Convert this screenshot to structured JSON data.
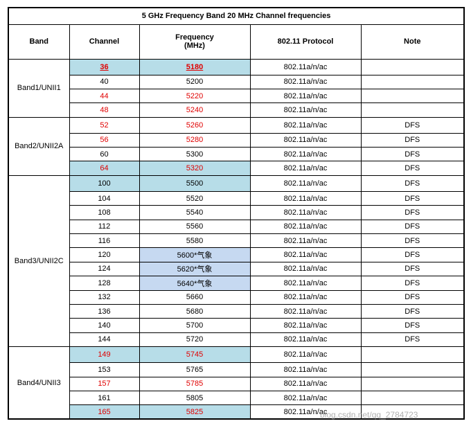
{
  "table": {
    "title": "5 GHz Frequency Band 20 MHz Channel frequencies",
    "headers": [
      "Band",
      "Channel",
      "Frequency\n(MHz)",
      "802.11 Protocol",
      "Note"
    ],
    "groups": [
      {
        "band": "Band1/UNII1",
        "rows": [
          {
            "channel": "36",
            "frequency": "5180",
            "protocol": "802.11a/n/ac",
            "color": "#e00000",
            "fill": "#b7dde8",
            "underline": true
          },
          {
            "channel": "40",
            "frequency": "5200",
            "protocol": "802.11a/n/ac"
          },
          {
            "channel": "44",
            "frequency": "5220",
            "protocol": "802.11a/n/ac",
            "color": "#e00000"
          },
          {
            "channel": "48",
            "frequency": "5240",
            "protocol": "802.11a/n/ac",
            "color": "#e00000"
          }
        ]
      },
      {
        "band": "Band2/UNII2A",
        "rows": [
          {
            "channel": "52",
            "frequency": "5260",
            "protocol": "802.11a/n/ac",
            "note": "DFS",
            "color": "#e00000"
          },
          {
            "channel": "56",
            "frequency": "5280",
            "protocol": "802.11a/n/ac",
            "note": "DFS",
            "color": "#e00000"
          },
          {
            "channel": "60",
            "frequency": "5300",
            "protocol": "802.11a/n/ac",
            "note": "DFS"
          },
          {
            "channel": "64",
            "frequency": "5320",
            "protocol": "802.11a/n/ac",
            "note": "DFS",
            "color": "#e00000",
            "fill": "#b7dde8"
          }
        ]
      },
      {
        "band": "Band3/UNII2C",
        "rows": [
          {
            "channel": "100",
            "frequency": "5500",
            "protocol": "802.11a/n/ac",
            "note": "DFS",
            "fill": "#b7dde8"
          },
          {
            "channel": "104",
            "frequency": "5520",
            "protocol": "802.11a/n/ac",
            "note": "DFS"
          },
          {
            "channel": "108",
            "frequency": "5540",
            "protocol": "802.11a/n/ac",
            "note": "DFS"
          },
          {
            "channel": "112",
            "frequency": "5560",
            "protocol": "802.11a/n/ac",
            "note": "DFS"
          },
          {
            "channel": "116",
            "frequency": "5580",
            "protocol": "802.11a/n/ac",
            "note": "DFS"
          },
          {
            "channel": "120",
            "frequency": "5600*气象",
            "protocol": "802.11a/n/ac",
            "note": "DFS",
            "freq_fill": "#c6d9f1"
          },
          {
            "channel": "124",
            "frequency": "5620*气象",
            "protocol": "802.11a/n/ac",
            "note": "DFS",
            "freq_fill": "#c6d9f1"
          },
          {
            "channel": "128",
            "frequency": "5640*气象",
            "protocol": "802.11a/n/ac",
            "note": "DFS",
            "freq_fill": "#c6d9f1"
          },
          {
            "channel": "132",
            "frequency": "5660",
            "protocol": "802.11a/n/ac",
            "note": "DFS"
          },
          {
            "channel": "136",
            "frequency": "5680",
            "protocol": "802.11a/n/ac",
            "note": "DFS"
          },
          {
            "channel": "140",
            "frequency": "5700",
            "protocol": "802.11a/n/ac",
            "note": "DFS"
          },
          {
            "channel": "144",
            "frequency": "5720",
            "protocol": "802.11a/n/ac",
            "note": "DFS"
          }
        ]
      },
      {
        "band": "Band4/UNII3",
        "rows": [
          {
            "channel": "149",
            "frequency": "5745",
            "protocol": "802.11a/n/ac",
            "color": "#e00000",
            "fill": "#b7dde8"
          },
          {
            "channel": "153",
            "frequency": "5765",
            "protocol": "802.11a/n/ac"
          },
          {
            "channel": "157",
            "frequency": "5785",
            "protocol": "802.11a/n/ac",
            "color": "#e00000"
          },
          {
            "channel": "161",
            "frequency": "5805",
            "protocol": "802.11a/n/ac"
          },
          {
            "channel": "165",
            "frequency": "5825",
            "protocol": "802.11a/n/ac",
            "color": "#e00000",
            "fill": "#b7dde8"
          }
        ]
      }
    ]
  },
  "watermark": "blog.csdn.net/qq_2784723"
}
